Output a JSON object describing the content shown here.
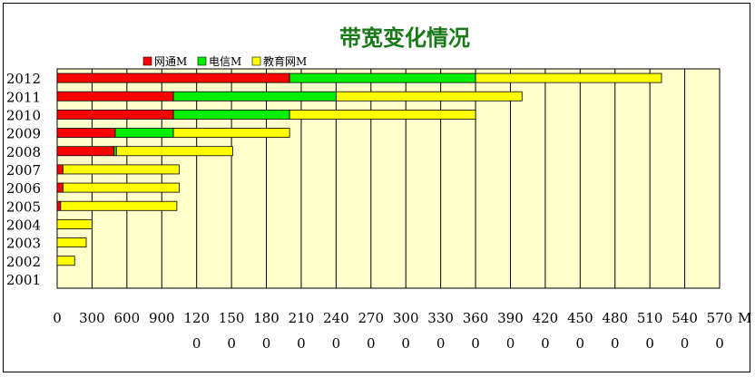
{
  "chart_data": {
    "type": "bar",
    "orientation": "horizontal",
    "stacked": true,
    "title": "带宽变化情况",
    "unit": "M",
    "categories": [
      "2001",
      "2002",
      "2003",
      "2004",
      "2005",
      "2006",
      "2007",
      "2008",
      "2009",
      "2010",
      "2011",
      "2012"
    ],
    "series": [
      {
        "name": "网通M",
        "color": "#ff0000",
        "values": [
          0,
          0,
          0,
          0,
          30,
          50,
          50,
          490,
          500,
          1000,
          1000,
          2000
        ]
      },
      {
        "name": "电信M",
        "color": "#00ee00",
        "values": [
          0,
          0,
          0,
          0,
          0,
          0,
          0,
          20,
          500,
          1000,
          1400,
          1600
        ]
      },
      {
        "name": "教育网M",
        "color": "#ffff00",
        "values": [
          0,
          150,
          250,
          300,
          1000,
          1000,
          1000,
          1000,
          1000,
          1600,
          1600,
          1600
        ]
      }
    ],
    "xlim": [
      0,
      5700
    ],
    "xtick_labels": [
      "0",
      "300",
      "600",
      "900",
      "120\n0",
      "150\n0",
      "180\n0",
      "210\n0",
      "240\n0",
      "270\n0",
      "300\n0",
      "330\n0",
      "360\n0",
      "390\n0",
      "420\n0",
      "450\n0",
      "480\n0",
      "510\n0",
      "540\n0",
      "570\n0"
    ],
    "xtick_values": [
      0,
      300,
      600,
      900,
      1200,
      1500,
      1800,
      2100,
      2400,
      2700,
      3000,
      3300,
      3600,
      3900,
      4200,
      4500,
      4800,
      5100,
      5400,
      5700
    ],
    "xtick_suffix": "M",
    "grid": true,
    "legend_position": "top",
    "plot_background": "#ffffcc"
  }
}
